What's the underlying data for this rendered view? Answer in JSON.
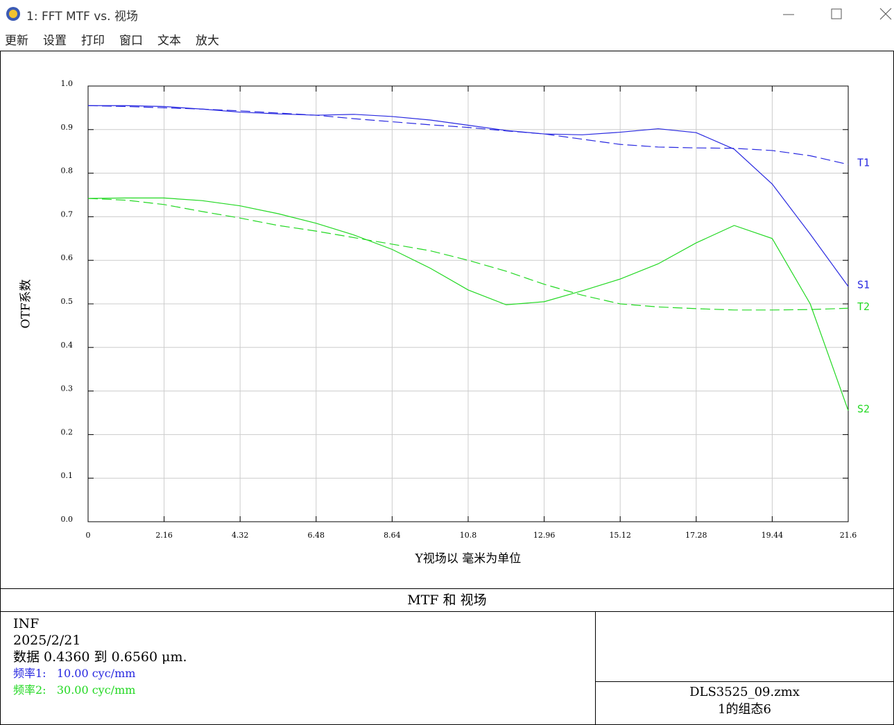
{
  "window": {
    "title": "1: FFT MTF vs. 视场"
  },
  "menu": [
    "更新",
    "设置",
    "打印",
    "窗口",
    "文本",
    "放大"
  ],
  "chart_data": {
    "type": "line",
    "xlabel": "Y视场以 毫米为单位",
    "ylabel": "OTF系数",
    "x": [
      0,
      1.08,
      2.16,
      3.24,
      4.32,
      5.4,
      6.48,
      7.56,
      8.64,
      9.72,
      10.8,
      11.88,
      12.96,
      14.04,
      15.12,
      16.2,
      17.28,
      18.36,
      19.44,
      20.52,
      21.6
    ],
    "series": [
      {
        "name": "T1",
        "color": "#2828e0",
        "style": "dashed",
        "values": [
          0.955,
          0.953,
          0.95,
          0.947,
          0.943,
          0.938,
          0.933,
          0.925,
          0.918,
          0.911,
          0.905,
          0.897,
          0.89,
          0.878,
          0.866,
          0.86,
          0.858,
          0.857,
          0.852,
          0.84,
          0.82
        ]
      },
      {
        "name": "S1",
        "color": "#2828e0",
        "style": "solid",
        "values": [
          0.955,
          0.955,
          0.953,
          0.947,
          0.94,
          0.936,
          0.933,
          0.935,
          0.93,
          0.922,
          0.91,
          0.898,
          0.89,
          0.888,
          0.894,
          0.902,
          0.893,
          0.855,
          0.775,
          0.66,
          0.54
        ]
      },
      {
        "name": "T2",
        "color": "#22d822",
        "style": "dashed",
        "values": [
          0.742,
          0.738,
          0.728,
          0.712,
          0.697,
          0.68,
          0.667,
          0.652,
          0.637,
          0.622,
          0.6,
          0.575,
          0.545,
          0.52,
          0.5,
          0.493,
          0.489,
          0.486,
          0.486,
          0.487,
          0.49
        ]
      },
      {
        "name": "S2",
        "color": "#22d822",
        "style": "solid",
        "values": [
          0.742,
          0.743,
          0.743,
          0.737,
          0.725,
          0.707,
          0.685,
          0.658,
          0.625,
          0.582,
          0.532,
          0.498,
          0.505,
          0.53,
          0.557,
          0.592,
          0.64,
          0.68,
          0.65,
          0.5,
          0.255
        ]
      }
    ],
    "xlim": [
      0,
      21.6
    ],
    "xticks": [
      0,
      2.16,
      4.32,
      6.48,
      8.64,
      10.8,
      12.96,
      15.12,
      17.28,
      19.44,
      21.6
    ],
    "ylim": [
      0,
      1
    ],
    "yticks": [
      {
        "value": 0,
        "label": "0.0"
      },
      0.1,
      0.2,
      0.3,
      0.4,
      0.5,
      0.6,
      0.7,
      0.8,
      0.9,
      {
        "value": 1,
        "label": "1.0"
      }
    ],
    "grid": true
  },
  "footer": {
    "title": "MTF 和 视场",
    "info": [
      "INF",
      "2025/2/21",
      "数据 0.4360 到 0.6560 μm."
    ],
    "frequencies": [
      {
        "text": "频率1:   10.00 cyc/mm",
        "color": "#2828e0"
      },
      {
        "text": "频率2:   30.00 cyc/mm",
        "color": "#22d822"
      }
    ],
    "file": "DLS3525_09.zmx",
    "config": "1的组态6"
  }
}
